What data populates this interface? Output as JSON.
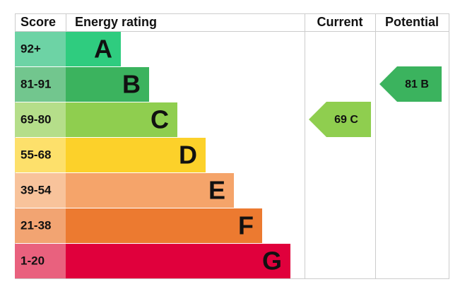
{
  "header": {
    "score": "Score",
    "rating": "Energy rating",
    "current": "Current",
    "potential": "Potential"
  },
  "rows": [
    {
      "score": "92+",
      "rating": "A"
    },
    {
      "score": "81-91",
      "rating": "B"
    },
    {
      "score": "69-80",
      "rating": "C"
    },
    {
      "score": "55-68",
      "rating": "D"
    },
    {
      "score": "39-54",
      "rating": "E"
    },
    {
      "score": "21-38",
      "rating": "F"
    },
    {
      "score": "1-20",
      "rating": "G"
    }
  ],
  "current": "69 C",
  "potential": "81 B"
}
